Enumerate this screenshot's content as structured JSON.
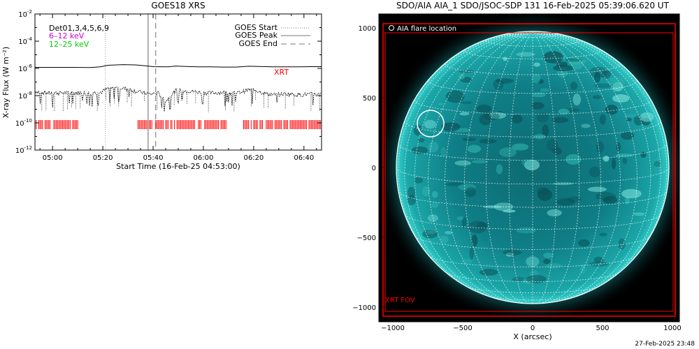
{
  "left_panel": {
    "title": "GOES18 XRS",
    "ylabel": "X-ray Flux (W m⁻²)",
    "xlabel": "Start Time (16-Feb-25 04:53:00)",
    "y_ticks": [
      {
        "base": "10",
        "exp": "-2"
      },
      {
        "base": "10",
        "exp": "-4"
      },
      {
        "base": "10",
        "exp": "-6"
      },
      {
        "base": "10",
        "exp": "-8"
      },
      {
        "base": "10",
        "exp": "-10"
      },
      {
        "base": "10",
        "exp": "-12"
      }
    ],
    "x_ticks": [
      "05:00",
      "05:20",
      "05:40",
      "06:00",
      "06:20",
      "06:40"
    ],
    "legend_left": [
      {
        "text": "Det01,3,4,5,6,9",
        "color": "#000000"
      },
      {
        "text": "6–12 keV",
        "color": "#cc00cc"
      },
      {
        "text": "12–25 keV",
        "color": "#00cc00"
      }
    ],
    "legend_right": [
      {
        "text": "GOES Start",
        "style": "dotted"
      },
      {
        "text": "GOES Peak",
        "style": "solid"
      },
      {
        "text": "GOES End",
        "style": "dashed"
      }
    ],
    "xrt_label": "XRT",
    "colors": {
      "xrt": "#ff0000",
      "goes_lines": "#999999"
    }
  },
  "right_panel": {
    "title": "SDO/AIA AIA_1 SDO/JSOC-SDP 131 16-Feb-2025 05:39:06.620 UT",
    "xlabel": "X (arcsec)",
    "x_ticks": [
      "−1000",
      "−500",
      "0",
      "500",
      "1000"
    ],
    "y_ticks": [
      "1000",
      "500",
      "0",
      "−500",
      "−1000"
    ],
    "legend": "AIA flare location",
    "fov_label": "XRT FOV",
    "colors": {
      "fov": "#ff0000",
      "disk": "#19b3b3",
      "grid": "#ffffff"
    }
  },
  "footer_timestamp": "27-Feb-2025 23:48",
  "chart_data": [
    {
      "type": "line",
      "title": "GOES18 XRS",
      "xlabel": "Start Time (16-Feb-25 04:53:00)",
      "ylabel": "X-ray Flux (W m⁻²)",
      "x_unit": "minutes since 04:53:00",
      "x_range_minutes": [
        0,
        114
      ],
      "ylim": [
        1e-12,
        0.01
      ],
      "y_scale": "log",
      "x_ticks_minutes": [
        7,
        27,
        47,
        67,
        87,
        107
      ],
      "event_markers_minutes": {
        "goes_start": 28,
        "goes_peak": 45,
        "goes_end": 48
      },
      "series": [
        {
          "name": "6–12 keV",
          "x": [
            0,
            8,
            15,
            22,
            26,
            29,
            35,
            40,
            44,
            47,
            53,
            56,
            60,
            65,
            70,
            75,
            80,
            85,
            89,
            95,
            100,
            105,
            110,
            114
          ],
          "y": [
            1.2e-06,
            1.2e-06,
            1.2e-06,
            1.15e-06,
            1.3e-06,
            1.7e-06,
            1.9e-06,
            1.8e-06,
            1.55e-06,
            1.35e-06,
            1.3e-06,
            1.5e-06,
            1.4e-06,
            1.3e-06,
            1.3e-06,
            1.25e-06,
            1.25e-06,
            1.45e-06,
            1.4e-06,
            1.3e-06,
            1.3e-06,
            1.3e-06,
            1.35e-06,
            1.35e-06
          ]
        },
        {
          "name": "12–25 keV",
          "x": [
            0,
            5,
            10,
            15,
            20,
            26,
            29,
            33,
            38,
            42,
            46,
            49,
            52,
            54,
            56,
            60,
            65,
            70,
            75,
            80,
            85,
            88,
            92,
            95,
            100,
            105,
            110,
            114
          ],
          "y": [
            2.2e-08,
            1.6e-08,
            1.6e-08,
            1.7e-08,
            1.6e-08,
            1.7e-08,
            3.5e-08,
            4e-08,
            2.8e-08,
            1.8e-08,
            1.3e-08,
            1.6e-08,
            4e-09,
            1e-08,
            2.5e-08,
            2.3e-08,
            1.9e-08,
            1.6e-08,
            1.8e-08,
            1.5e-08,
            2.8e-08,
            2.5e-08,
            1.4e-08,
            1.2e-08,
            1.4e-08,
            1.2e-08,
            1.3e-08,
            1.2e-08
          ]
        }
      ],
      "xrt_coverage_minutes": [
        [
          0,
          17
        ],
        [
          41,
          76
        ],
        [
          83,
          114
        ]
      ]
    },
    {
      "type": "scatter",
      "title": "SDO/AIA AIA_1 SDO/JSOC-SDP 131 16-Feb-2025 05:39:06.620 UT",
      "xlabel": "X (arcsec)",
      "ylabel": "",
      "xlim": [
        -1100,
        1100
      ],
      "ylim": [
        -1100,
        1100
      ],
      "solar_radius_arcsec": 975,
      "flare_location": {
        "x": -730,
        "y": 315
      },
      "xrt_fov": {
        "x_range": [
          -1070,
          1020
        ],
        "y_range": [
          -1065,
          1030
        ]
      }
    }
  ]
}
